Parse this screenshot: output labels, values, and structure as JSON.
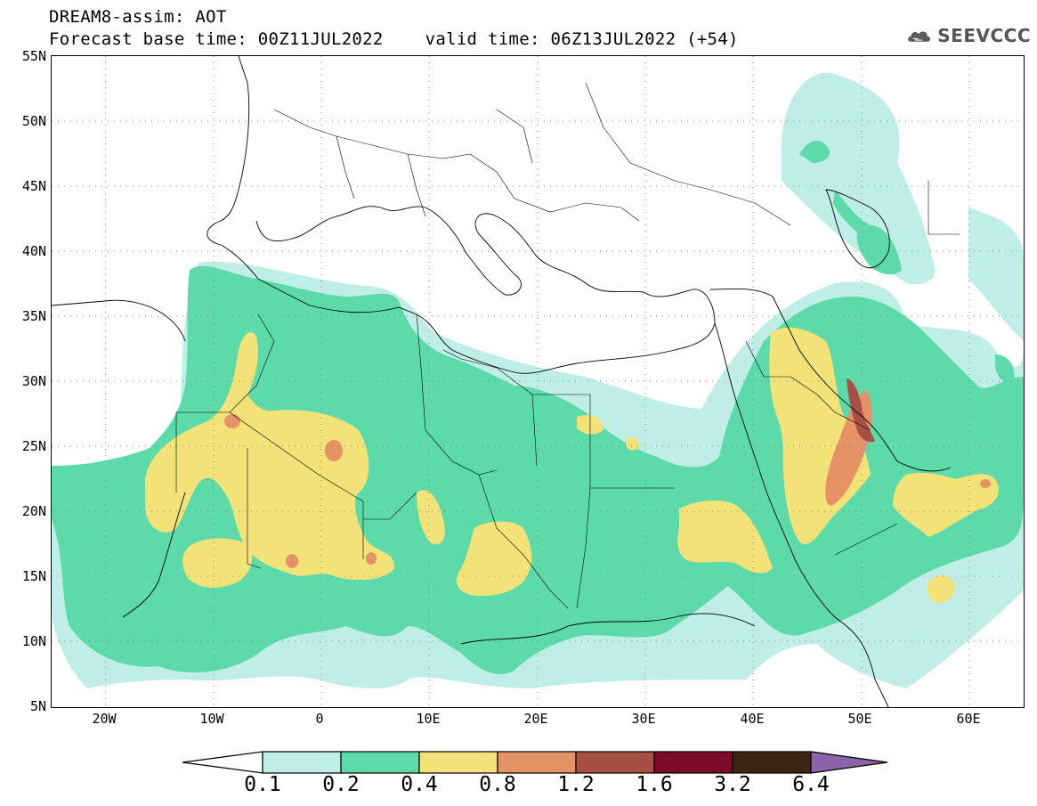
{
  "header": {
    "title_line1": "DREAM8-assim: AOT",
    "title_line2": "Forecast base time: 00Z11JUL2022    valid time: 06Z13JUL2022 (+54)",
    "logo_text": "SEEVCCC",
    "logo_icon": "cloud-icon"
  },
  "map": {
    "lon_range": [
      -25,
      65
    ],
    "lat_range": [
      5,
      55
    ],
    "lat_labels": [
      "55N",
      "50N",
      "45N",
      "40N",
      "35N",
      "30N",
      "25N",
      "20N",
      "15N",
      "10N",
      "5N"
    ],
    "lon_labels": [
      "20W",
      "10W",
      "0",
      "10E",
      "20E",
      "30E",
      "40E",
      "50E",
      "60E"
    ],
    "gridlines": "dotted"
  },
  "colorbar": {
    "labels": [
      "0.1",
      "0.2",
      "0.4",
      "0.8",
      "1.2",
      "1.6",
      "3.2",
      "6.4"
    ],
    "colors": [
      "#ffffff",
      "#bfeee6",
      "#5ddaaa",
      "#f2e278",
      "#e59266",
      "#a84f43",
      "#7d0a28",
      "#3d2614",
      "#8a63a8"
    ]
  }
}
